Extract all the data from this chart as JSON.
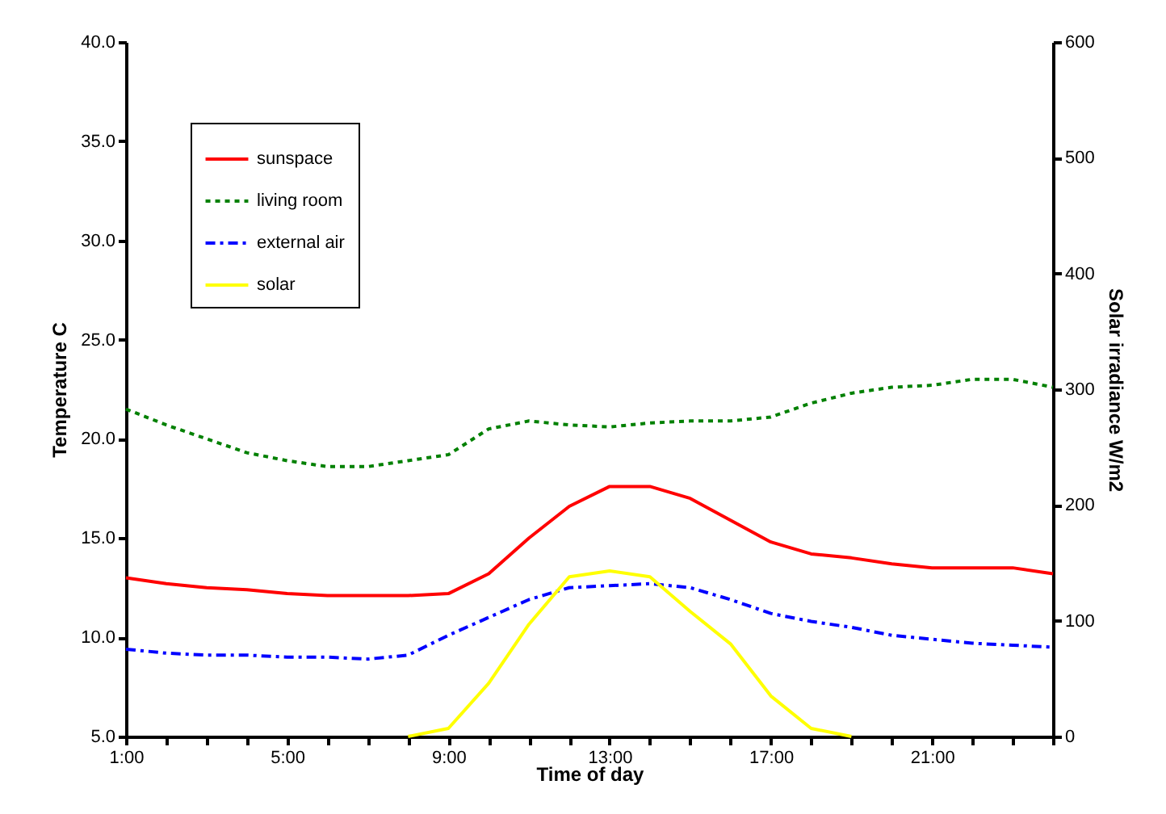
{
  "chart_data": {
    "type": "line",
    "xlabel": "Time of day",
    "ylabel": "Temperature C",
    "y2label": "Solar irradiance W/m2",
    "x": [
      1,
      2,
      3,
      4,
      5,
      6,
      7,
      8,
      9,
      10,
      11,
      12,
      13,
      14,
      15,
      16,
      17,
      18,
      19,
      20,
      21,
      22,
      23,
      24
    ],
    "xlim": [
      1,
      24
    ],
    "xticks": [
      {
        "value": 1,
        "label": "1:00"
      },
      {
        "value": 2,
        "label": null
      },
      {
        "value": 3,
        "label": null
      },
      {
        "value": 4,
        "label": null
      },
      {
        "value": 5,
        "label": "5:00"
      },
      {
        "value": 6,
        "label": null
      },
      {
        "value": 7,
        "label": null
      },
      {
        "value": 8,
        "label": null
      },
      {
        "value": 9,
        "label": "9:00"
      },
      {
        "value": 10,
        "label": null
      },
      {
        "value": 11,
        "label": null
      },
      {
        "value": 12,
        "label": null
      },
      {
        "value": 13,
        "label": "13:00"
      },
      {
        "value": 14,
        "label": null
      },
      {
        "value": 15,
        "label": null
      },
      {
        "value": 16,
        "label": null
      },
      {
        "value": 17,
        "label": "17:00"
      },
      {
        "value": 18,
        "label": null
      },
      {
        "value": 19,
        "label": null
      },
      {
        "value": 20,
        "label": null
      },
      {
        "value": 21,
        "label": "21:00"
      },
      {
        "value": 22,
        "label": null
      },
      {
        "value": 23,
        "label": null
      },
      {
        "value": 24,
        "label": null
      }
    ],
    "ylim": [
      5,
      40
    ],
    "yticks": [
      {
        "value": 5,
        "label": "5.0"
      },
      {
        "value": 10,
        "label": "10.0"
      },
      {
        "value": 15,
        "label": "15.0"
      },
      {
        "value": 20,
        "label": "20.0"
      },
      {
        "value": 25,
        "label": "25.0"
      },
      {
        "value": 30,
        "label": "30.0"
      },
      {
        "value": 35,
        "label": "35.0"
      },
      {
        "value": 40,
        "label": "40.0"
      }
    ],
    "y2lim": [
      0,
      600
    ],
    "y2ticks": [
      0,
      100,
      200,
      300,
      400,
      500,
      600
    ],
    "grid": false,
    "legend": "top left",
    "marker": "none",
    "series": [
      {
        "name": "sunspace",
        "color": "#ff0000",
        "line_style": "solid",
        "values": [
          13.0,
          12.7,
          12.5,
          12.4,
          12.2,
          12.1,
          12.1,
          12.1,
          12.2,
          13.2,
          15.0,
          16.6,
          17.6,
          17.6,
          17.0,
          15.9,
          14.8,
          14.2,
          14.0,
          13.7,
          13.5,
          13.5,
          13.5,
          13.2
        ]
      },
      {
        "name": "living room",
        "color": "#008000",
        "line_style": "dotted",
        "values": [
          21.5,
          20.7,
          20.0,
          19.3,
          18.9,
          18.6,
          18.6,
          18.9,
          19.2,
          20.5,
          20.9,
          20.7,
          20.6,
          20.8,
          20.9,
          20.9,
          21.1,
          21.8,
          22.3,
          22.6,
          22.7,
          23.0,
          23.0,
          22.6
        ]
      },
      {
        "name": "external air",
        "color": "#0000ff",
        "line_style": "dashed",
        "values": [
          9.4,
          9.2,
          9.1,
          9.1,
          9.0,
          9.0,
          8.9,
          9.1,
          10.1,
          11.0,
          11.9,
          12.5,
          12.6,
          12.7,
          12.5,
          11.9,
          11.2,
          10.8,
          10.5,
          10.1,
          9.9,
          9.7,
          9.6,
          9.5
        ]
      },
      {
        "name": "solar",
        "color": "#ffff00",
        "line_style": "solid",
        "axis": "y2",
        "values": [
          null,
          null,
          null,
          null,
          null,
          null,
          null,
          0,
          7,
          46,
          97,
          138,
          143,
          138,
          108,
          80,
          35,
          7,
          0,
          null,
          null,
          null,
          null,
          null
        ]
      }
    ]
  }
}
